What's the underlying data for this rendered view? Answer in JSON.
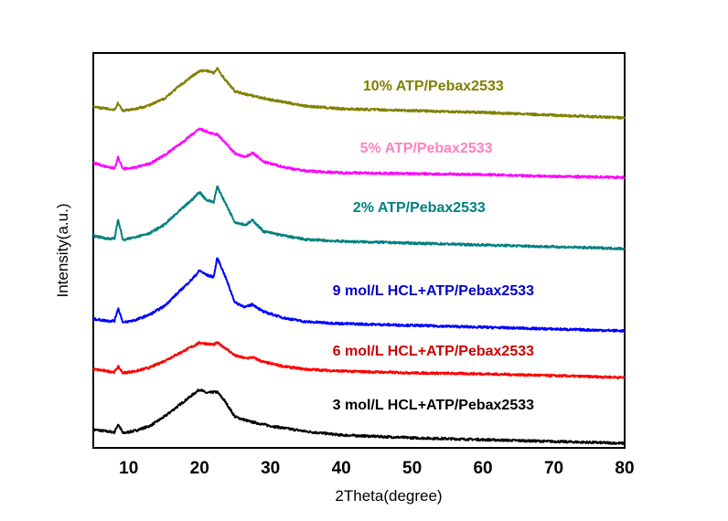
{
  "chart_data": {
    "type": "line",
    "title": "",
    "xlabel": "2Theta(degree)",
    "ylabel": "Intensity(a.u.)",
    "xlim": [
      5,
      80
    ],
    "ylim": [
      0,
      432
    ],
    "xticks": [
      10,
      20,
      30,
      40,
      50,
      60,
      70,
      80
    ],
    "yticks": [],
    "grid": false,
    "legend": "inline labels above each curve",
    "series": [
      {
        "name": "3 mol/L HCL+ATP/Pebax2533",
        "color": "#000000",
        "label_color": "#000000",
        "points": [
          [
            5,
            20
          ],
          [
            7,
            18
          ],
          [
            8,
            17
          ],
          [
            8.5,
            26
          ],
          [
            9.2,
            16
          ],
          [
            11,
            19
          ],
          [
            13,
            24
          ],
          [
            15,
            34
          ],
          [
            17,
            46
          ],
          [
            19,
            58
          ],
          [
            20,
            64
          ],
          [
            21,
            60
          ],
          [
            22,
            61
          ],
          [
            22.5,
            61
          ],
          [
            23.5,
            52
          ],
          [
            25,
            34
          ],
          [
            27,
            29
          ],
          [
            30,
            24
          ],
          [
            35,
            18
          ],
          [
            40,
            14
          ],
          [
            50,
            11
          ],
          [
            60,
            9
          ],
          [
            70,
            7
          ],
          [
            80,
            5
          ]
        ]
      },
      {
        "name": "6 mol/L HCL+ATP/Pebax2533",
        "color": "#ff0000",
        "label_color": "#cc0000",
        "points": [
          [
            5,
            86
          ],
          [
            7,
            84
          ],
          [
            8,
            83
          ],
          [
            8.5,
            89
          ],
          [
            9.2,
            82
          ],
          [
            11,
            84
          ],
          [
            13,
            88
          ],
          [
            15,
            95
          ],
          [
            17,
            103
          ],
          [
            19,
            111
          ],
          [
            20,
            115
          ],
          [
            21,
            114
          ],
          [
            22,
            113
          ],
          [
            22.5,
            115
          ],
          [
            23.5,
            110
          ],
          [
            25,
            101
          ],
          [
            26.5,
            98
          ],
          [
            27.5,
            99
          ],
          [
            29,
            94
          ],
          [
            32,
            89
          ],
          [
            35,
            86
          ],
          [
            40,
            84
          ],
          [
            50,
            82
          ],
          [
            60,
            81
          ],
          [
            70,
            79
          ],
          [
            80,
            77
          ]
        ]
      },
      {
        "name": "9 mol/L HCL+ATP/Pebax2533",
        "color": "#0000ff",
        "label_color": "#0000cc",
        "points": [
          [
            5,
            141
          ],
          [
            7,
            139
          ],
          [
            8,
            139
          ],
          [
            8.5,
            153
          ],
          [
            9.2,
            137
          ],
          [
            11,
            140
          ],
          [
            13,
            146
          ],
          [
            15,
            155
          ],
          [
            17,
            170
          ],
          [
            19,
            185
          ],
          [
            20,
            194
          ],
          [
            21,
            189
          ],
          [
            22,
            187
          ],
          [
            22.5,
            208
          ],
          [
            23.5,
            190
          ],
          [
            25,
            159
          ],
          [
            26.5,
            154
          ],
          [
            27.5,
            157
          ],
          [
            29,
            149
          ],
          [
            32,
            142
          ],
          [
            35,
            138
          ],
          [
            40,
            136
          ],
          [
            50,
            134
          ],
          [
            60,
            132
          ],
          [
            70,
            130
          ],
          [
            80,
            128
          ]
        ]
      },
      {
        "name": "2% ATP/Pebax2533",
        "color": "#008080",
        "label_color": "#008080",
        "points": [
          [
            5,
            232
          ],
          [
            7,
            229
          ],
          [
            8,
            229
          ],
          [
            8.5,
            250
          ],
          [
            9.2,
            227
          ],
          [
            11,
            231
          ],
          [
            13,
            235
          ],
          [
            15,
            244
          ],
          [
            17,
            258
          ],
          [
            19,
            272
          ],
          [
            20,
            280
          ],
          [
            21,
            271
          ],
          [
            22,
            269
          ],
          [
            22.5,
            286
          ],
          [
            23.5,
            270
          ],
          [
            25,
            247
          ],
          [
            26.5,
            244
          ],
          [
            27.5,
            249
          ],
          [
            29,
            237
          ],
          [
            32,
            232
          ],
          [
            35,
            228
          ],
          [
            40,
            226
          ],
          [
            50,
            224
          ],
          [
            60,
            222
          ],
          [
            70,
            220
          ],
          [
            80,
            218
          ]
        ]
      },
      {
        "name": "5% ATP/Pebax2533",
        "color": "#ff00ff",
        "label_color": "#ff80c0",
        "points": [
          [
            5,
            312
          ],
          [
            7,
            307
          ],
          [
            8,
            306
          ],
          [
            8.5,
            318
          ],
          [
            9.2,
            305
          ],
          [
            11,
            307
          ],
          [
            13,
            311
          ],
          [
            15,
            320
          ],
          [
            17,
            331
          ],
          [
            19,
            343
          ],
          [
            20,
            349
          ],
          [
            21,
            346
          ],
          [
            22,
            343
          ],
          [
            22.5,
            343
          ],
          [
            23.5,
            335
          ],
          [
            25,
            322
          ],
          [
            26.5,
            318
          ],
          [
            27.5,
            323
          ],
          [
            29,
            313
          ],
          [
            32,
            307
          ],
          [
            35,
            303
          ],
          [
            40,
            301
          ],
          [
            50,
            300
          ],
          [
            60,
            299
          ],
          [
            70,
            297
          ],
          [
            80,
            296
          ]
        ]
      },
      {
        "name": "10% ATP/Pebax2533",
        "color": "#808000",
        "label_color": "#808000",
        "points": [
          [
            5,
            373
          ],
          [
            7,
            371
          ],
          [
            8,
            370
          ],
          [
            8.5,
            377
          ],
          [
            9.2,
            369
          ],
          [
            11,
            371
          ],
          [
            13,
            375
          ],
          [
            15,
            382
          ],
          [
            17,
            395
          ],
          [
            19,
            407
          ],
          [
            20,
            412
          ],
          [
            21,
            413
          ],
          [
            22,
            410
          ],
          [
            22.5,
            415
          ],
          [
            23.5,
            404
          ],
          [
            25,
            390
          ],
          [
            27,
            386
          ],
          [
            30,
            381
          ],
          [
            35,
            374
          ],
          [
            40,
            371
          ],
          [
            50,
            369
          ],
          [
            60,
            367
          ],
          [
            70,
            364
          ],
          [
            80,
            361
          ]
        ]
      }
    ],
    "annotations": [
      {
        "text": "10% ATP/Pebax2533",
        "x": 53,
        "y": 391,
        "color": "#808000"
      },
      {
        "text": "5% ATP/Pebax2533",
        "x": 52,
        "y": 323,
        "color": "#ff80c0"
      },
      {
        "text": "2% ATP/Pebax2533",
        "x": 51,
        "y": 258,
        "color": "#008080"
      },
      {
        "text": "9 mol/L HCL+ATP/Pebax2533",
        "x": 53,
        "y": 167,
        "color": "#0000cc"
      },
      {
        "text": "6 mol/L HCL+ATP/Pebax2533",
        "x": 53,
        "y": 101,
        "color": "#cc0000"
      },
      {
        "text": "3 mol/L HCL+ATP/Pebax2533",
        "x": 53,
        "y": 42,
        "color": "#000000"
      }
    ]
  }
}
